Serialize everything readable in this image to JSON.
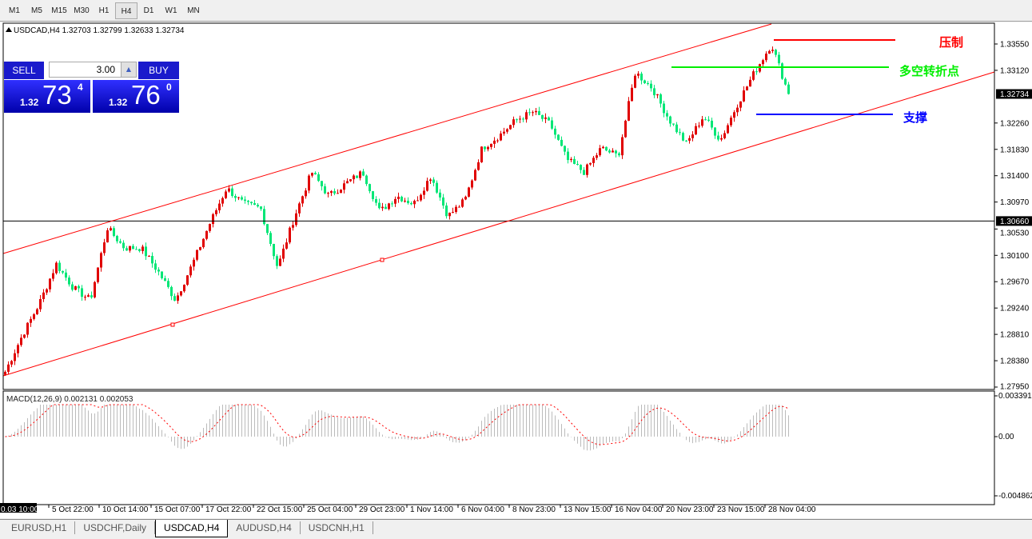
{
  "timeframes": [
    "M1",
    "M5",
    "M15",
    "M30",
    "H1",
    "H4",
    "D1",
    "W1",
    "MN"
  ],
  "active_timeframe": "H4",
  "header": {
    "symbol_info": "USDCAD,H4  1.32703 1.32799 1.32633 1.32734"
  },
  "one_click": {
    "sell_label": "SELL",
    "buy_label": "BUY",
    "lot": "3.00",
    "sell": {
      "small": "1.32",
      "big": "73",
      "pip": "4"
    },
    "buy": {
      "small": "1.32",
      "big": "76",
      "pip": "0"
    }
  },
  "annotations": {
    "resistance": "压制",
    "pivot": "多空转折点",
    "support": "支撑"
  },
  "colors": {
    "bull": "#e00000",
    "bear": "#00e676",
    "resistance": "#ff0000",
    "pivot": "#00ee00",
    "support": "#0000ff",
    "channel": "#ff0000"
  },
  "macd": {
    "label": "MACD(12,26,9) 0.002131 0.002053",
    "axis": [
      "0.003391",
      "0.00",
      "-0.004862"
    ]
  },
  "chart_data": {
    "type": "candlestick",
    "symbol": "USDCAD",
    "timeframe": "H4",
    "ylim": [
      1.2795,
      1.3355
    ],
    "price_ticks": [
      "1.33550",
      "1.33120",
      "1.32260",
      "1.31830",
      "1.31400",
      "1.30970",
      "1.30530",
      "1.30100",
      "1.29670",
      "1.29240",
      "1.28810",
      "1.28380",
      "1.27950"
    ],
    "current_price": "1.32734",
    "hline_price": "1.30660",
    "time_ticks": [
      "0.03 10:00",
      "5 Oct 22:00",
      "10 Oct 14:00",
      "15 Oct 07:00",
      "17 Oct 22:00",
      "22 Oct 15:00",
      "25 Oct 04:00",
      "29 Oct 23:00",
      "1 Nov 14:00",
      "6 Nov 04:00",
      "8 Nov 23:00",
      "13 Nov 15:00",
      "16 Nov 04:00",
      "20 Nov 23:00",
      "23 Nov 15:00",
      "28 Nov 04:00"
    ],
    "approx_closes": [
      1.282,
      1.2879,
      1.2931,
      1.2996,
      1.2957,
      1.2937,
      1.3055,
      1.3022,
      1.3022,
      1.2983,
      1.2937,
      1.2996,
      1.3061,
      1.312,
      1.3094,
      1.3087,
      1.299,
      1.3074,
      1.3146,
      1.3107,
      1.3127,
      1.3146,
      1.3081,
      1.3107,
      1.3094,
      1.314,
      1.3074,
      1.31,
      1.3185,
      1.3205,
      1.3231,
      1.3244,
      1.3224,
      1.3166,
      1.3146,
      1.3185,
      1.3172,
      1.3309,
      1.3283,
      1.3231,
      1.3192,
      1.3237,
      1.3198,
      1.3257,
      1.3309,
      1.3355,
      1.3273
    ],
    "levels": {
      "resistance": 1.3358,
      "pivot": 1.3316,
      "support": 1.324
    }
  },
  "tabs": [
    "EURUSD,H1",
    "USDCHF,Daily",
    "USDCAD,H4",
    "AUDUSD,H4",
    "USDCNH,H1"
  ],
  "active_tab": "USDCAD,H4"
}
